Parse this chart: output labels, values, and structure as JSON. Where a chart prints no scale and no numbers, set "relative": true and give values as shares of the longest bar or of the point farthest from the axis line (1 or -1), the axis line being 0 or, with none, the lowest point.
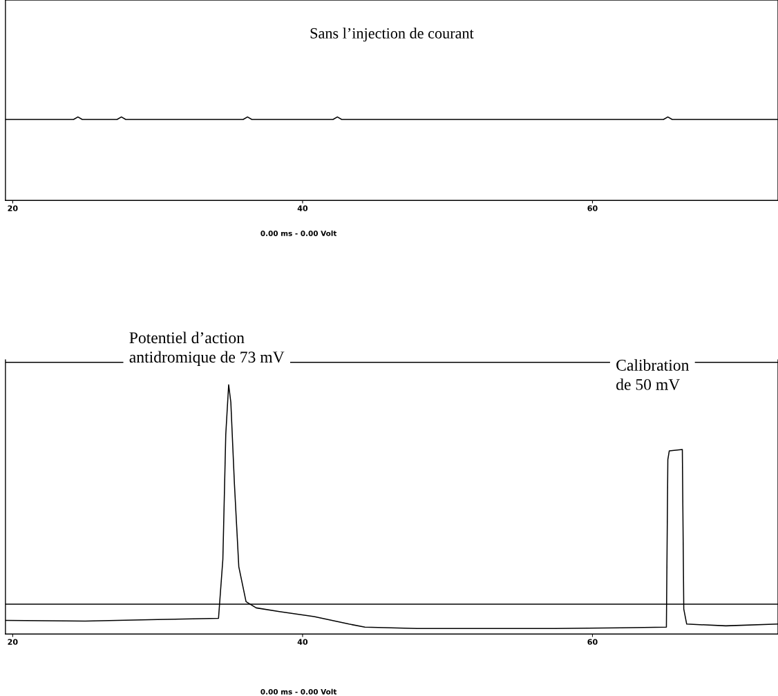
{
  "chart_data": [
    {
      "type": "line",
      "title": "Sans l’injection de courant",
      "relative": true,
      "color": "#000000",
      "xlim": [
        19.5,
        72.8
      ],
      "xticks": [
        20,
        40,
        60
      ],
      "x": [
        19.5,
        24.2,
        24.5,
        24.8,
        27.2,
        27.5,
        27.8,
        35.9,
        36.2,
        36.5,
        42.1,
        42.4,
        42.7,
        64.9,
        65.2,
        65.5,
        72.8
      ],
      "values": [
        0.97,
        0.97,
        1,
        0.97,
        0.97,
        1,
        0.97,
        0.97,
        1,
        0.97,
        0.97,
        1,
        0.97,
        0.97,
        1,
        0.97,
        0.97
      ],
      "annotations": [
        "0.00 ms - 0.00 Volt"
      ]
    },
    {
      "type": "line",
      "relative": true,
      "color": "#000000",
      "xlim": [
        19.5,
        72.8
      ],
      "xticks": [
        20,
        40,
        60
      ],
      "x": [
        19.5,
        25,
        30,
        34.2,
        34.5,
        34.7,
        34.9,
        35.05,
        35.3,
        35.6,
        36.1,
        36.8,
        38.4,
        40.8,
        43.2,
        44.3,
        47.9,
        52.6,
        57.4,
        62,
        65.1,
        65.2,
        65.3,
        66.2,
        66.3,
        66.5,
        69.2,
        72.8
      ],
      "values": [
        0.055,
        0.052,
        0.058,
        0.063,
        0.3,
        0.8,
        1,
        0.93,
        0.6,
        0.27,
        0.13,
        0.105,
        0.09,
        0.07,
        0.04,
        0.028,
        0.022,
        0.022,
        0.022,
        0.025,
        0.028,
        0.7,
        0.735,
        0.74,
        0.1,
        0.04,
        0.033,
        0.04
      ],
      "ref_lines": [
        {
          "axis": "y",
          "value": 0.12,
          "color": "#000000"
        },
        {
          "axis": "y",
          "value": 1.09,
          "color": "#000000"
        }
      ],
      "annotations": [
        "Potentiel d’action\nantidromique de 73 mV",
        "Calibration\nde 50 mV",
        "0.00 ms - 0.00 Volt"
      ]
    }
  ]
}
